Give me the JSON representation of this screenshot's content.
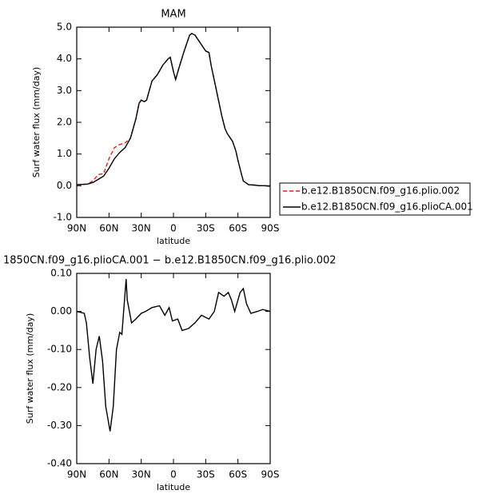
{
  "chart_data": [
    {
      "type": "line",
      "title": "MAM",
      "xlabel": "latitude",
      "ylabel": "Surf water flux (mm/day)",
      "x": [
        90,
        85,
        80,
        75,
        70,
        65,
        60,
        55,
        50,
        45,
        40,
        35,
        32,
        30,
        27,
        25,
        20,
        15,
        10,
        5,
        3,
        0,
        -2,
        -5,
        -10,
        -15,
        -17,
        -20,
        -25,
        -30,
        -33,
        -35,
        -40,
        -45,
        -48,
        -50,
        -55,
        -58,
        -60,
        -63,
        -65,
        -70,
        -75,
        -80,
        -85,
        -90
      ],
      "series": [
        {
          "name": "b.e12.B1850CN.f09_g16.plio.002",
          "color": "#e0201a",
          "line_style": "dashed",
          "values": [
            0.03,
            0.04,
            0.05,
            0.15,
            0.35,
            0.38,
            0.85,
            1.2,
            1.3,
            1.35,
            1.5,
            2.1,
            2.6,
            2.7,
            2.65,
            2.7,
            3.3,
            3.5,
            3.8,
            4.0,
            4.05,
            3.6,
            3.35,
            3.7,
            4.25,
            4.75,
            4.8,
            4.75,
            4.5,
            4.25,
            4.2,
            3.8,
            3.0,
            2.2,
            1.8,
            1.65,
            1.4,
            1.1,
            0.8,
            0.4,
            0.15,
            0.03,
            0.02,
            0.0,
            0.0,
            -0.02
          ]
        },
        {
          "name": "b.e12.B1850CN.f09_g16.plioCA.001",
          "color": "#000000",
          "line_style": "solid",
          "values": [
            0.03,
            0.04,
            0.05,
            0.1,
            0.2,
            0.3,
            0.55,
            0.85,
            1.05,
            1.2,
            1.5,
            2.1,
            2.6,
            2.7,
            2.65,
            2.7,
            3.3,
            3.5,
            3.8,
            4.0,
            4.05,
            3.6,
            3.35,
            3.7,
            4.25,
            4.75,
            4.8,
            4.75,
            4.5,
            4.25,
            4.2,
            3.8,
            3.0,
            2.2,
            1.8,
            1.65,
            1.4,
            1.1,
            0.8,
            0.4,
            0.15,
            0.03,
            0.02,
            0.0,
            0.0,
            -0.02
          ]
        }
      ],
      "xlim": [
        90,
        -90
      ],
      "xticks": [
        {
          "value": 90,
          "label": "90N"
        },
        {
          "value": 60,
          "label": "60N"
        },
        {
          "value": 30,
          "label": "30N"
        },
        0,
        {
          "value": -30,
          "label": "30S"
        },
        {
          "value": -60,
          "label": "60S"
        },
        {
          "value": -90,
          "label": "90S"
        }
      ],
      "ylim": [
        -1,
        5
      ],
      "yticks": [
        {
          "value": -1,
          "label": "-1.0"
        },
        {
          "value": 0,
          "label": "0.0"
        },
        {
          "value": 1,
          "label": "1.0"
        },
        {
          "value": 2,
          "label": "2.0"
        },
        {
          "value": 3,
          "label": "3.0"
        },
        {
          "value": 4,
          "label": "4.0"
        },
        {
          "value": 5,
          "label": "5.0"
        }
      ],
      "legend": "right"
    },
    {
      "type": "line",
      "title": "1850CN.f09_g16.plioCA.001 − b.e12.B1850CN.f09_g16.plio.002",
      "xlabel": "latitude",
      "ylabel": "Surf water flux (mm/day)",
      "x": [
        90,
        83,
        81,
        78,
        75,
        72,
        69,
        66,
        63,
        59,
        56,
        53,
        50,
        48,
        45,
        44,
        43,
        39,
        35,
        30,
        26,
        20,
        13,
        8,
        4,
        1,
        -4,
        -8,
        -14,
        -20,
        -26,
        -33,
        -38,
        -42,
        -47,
        -51,
        -54,
        -57,
        -62,
        -65,
        -68,
        -72,
        -78,
        -83,
        -90
      ],
      "series": [
        {
          "color": "#000000",
          "line_style": "solid",
          "values": [
            0.0,
            -0.005,
            -0.03,
            -0.12,
            -0.19,
            -0.1,
            -0.065,
            -0.13,
            -0.25,
            -0.315,
            -0.25,
            -0.1,
            -0.055,
            -0.06,
            0.05,
            0.085,
            0.03,
            -0.03,
            -0.02,
            -0.005,
            0.0,
            0.01,
            0.015,
            -0.01,
            0.01,
            -0.025,
            -0.02,
            -0.05,
            -0.045,
            -0.03,
            -0.01,
            -0.02,
            0.0,
            0.05,
            0.04,
            0.05,
            0.03,
            0.0,
            0.05,
            0.06,
            0.02,
            -0.005,
            0.0,
            0.005,
            0.0
          ]
        }
      ],
      "xlim": [
        90,
        -90
      ],
      "xticks": [
        {
          "value": 90,
          "label": "90N"
        },
        {
          "value": 60,
          "label": "60N"
        },
        {
          "value": 30,
          "label": "30N"
        },
        0,
        {
          "value": -30,
          "label": "30S"
        },
        {
          "value": -60,
          "label": "60S"
        },
        {
          "value": -90,
          "label": "90S"
        }
      ],
      "ylim": [
        -0.4,
        0.1
      ],
      "yticks": [
        {
          "value": -0.4,
          "label": "-0.40"
        },
        {
          "value": -0.3,
          "label": "-0.30"
        },
        {
          "value": -0.2,
          "label": "-0.20"
        },
        {
          "value": -0.1,
          "label": "-0.10"
        },
        {
          "value": 0,
          "label": "0.00"
        },
        {
          "value": 0.1,
          "label": "0.10"
        }
      ]
    }
  ]
}
